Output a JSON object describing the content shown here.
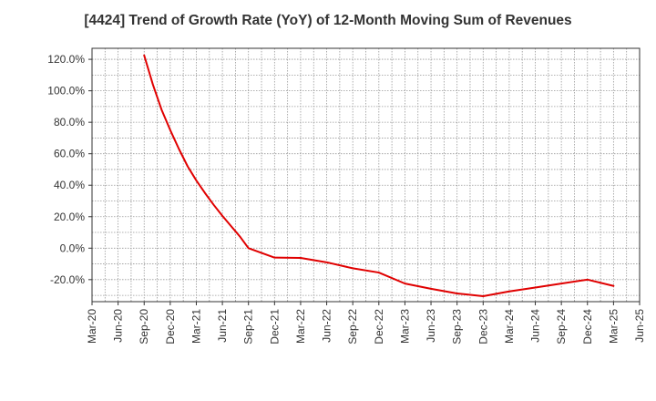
{
  "chart_data": {
    "type": "line",
    "title": "[4424]  Trend of Growth Rate (YoY) of 12-Month Moving Sum of Revenues",
    "xlabel": "",
    "ylabel": "",
    "x_ticks": [
      "Mar-20",
      "Jun-20",
      "Sep-20",
      "Dec-20",
      "Mar-21",
      "Jun-21",
      "Sep-21",
      "Dec-21",
      "Mar-22",
      "Jun-22",
      "Sep-22",
      "Dec-22",
      "Mar-23",
      "Jun-23",
      "Sep-23",
      "Dec-23",
      "Mar-24",
      "Jun-24",
      "Sep-24",
      "Dec-24",
      "Mar-25",
      "Jun-25"
    ],
    "y_ticks": [
      {
        "value": 120,
        "label": "120.0%"
      },
      {
        "value": 100,
        "label": "100.0%"
      },
      {
        "value": 80,
        "label": "80.0%"
      },
      {
        "value": 60,
        "label": "60.0%"
      },
      {
        "value": 40,
        "label": "40.0%"
      },
      {
        "value": 20,
        "label": "20.0%"
      },
      {
        "value": 0,
        "label": "0.0%"
      },
      {
        "value": -20,
        "label": "-20.0%"
      }
    ],
    "ylim": [
      -34,
      127
    ],
    "grid": true,
    "series": [
      {
        "color": "#e00000",
        "points": [
          {
            "x": "Sep-20",
            "y": 122.5
          },
          {
            "x": "Oct-20",
            "y": 104
          },
          {
            "x": "Nov-20",
            "y": 88
          },
          {
            "x": "Dec-20",
            "y": 75
          },
          {
            "x": "Jan-21",
            "y": 63
          },
          {
            "x": "Feb-21",
            "y": 52
          },
          {
            "x": "Mar-21",
            "y": 43
          },
          {
            "x": "Apr-21",
            "y": 35
          },
          {
            "x": "May-21",
            "y": 27.5
          },
          {
            "x": "Jun-21",
            "y": 20.5
          },
          {
            "x": "Jul-21",
            "y": 14
          },
          {
            "x": "Aug-21",
            "y": 7.5
          },
          {
            "x": "Sep-21",
            "y": 0
          },
          {
            "x": "Dec-21",
            "y": -6
          },
          {
            "x": "Mar-22",
            "y": -6.2
          },
          {
            "x": "Jun-22",
            "y": -9
          },
          {
            "x": "Sep-22",
            "y": -12.8
          },
          {
            "x": "Dec-22",
            "y": -15.5
          },
          {
            "x": "Mar-23",
            "y": -22.5
          },
          {
            "x": "Jun-23",
            "y": -25.8
          },
          {
            "x": "Sep-23",
            "y": -28.8
          },
          {
            "x": "Dec-23",
            "y": -30.5
          },
          {
            "x": "Mar-24",
            "y": -27.5
          },
          {
            "x": "Jun-24",
            "y": -25
          },
          {
            "x": "Sep-24",
            "y": -22.5
          },
          {
            "x": "Dec-24",
            "y": -20
          },
          {
            "x": "Mar-25",
            "y": -24
          }
        ]
      }
    ]
  }
}
